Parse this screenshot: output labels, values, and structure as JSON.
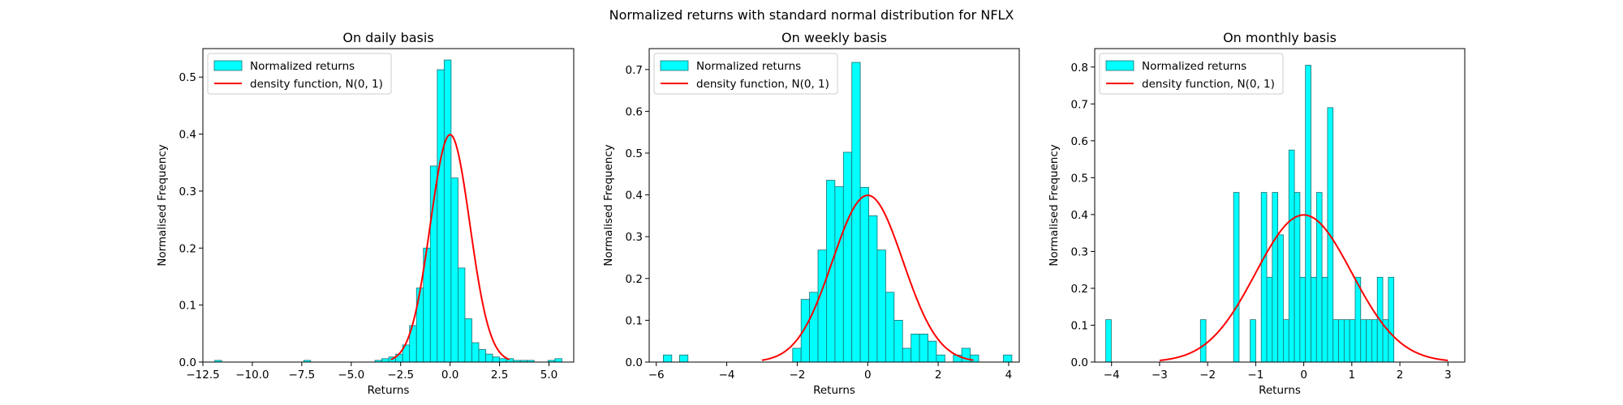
{
  "figure": {
    "suptitle": "Normalized returns with standard normal distribution for NFLX"
  },
  "colors": {
    "bar_fill": "#00ffff",
    "bar_edge": "#1f6f6f",
    "curve": "#ff0000",
    "axes": "#000000"
  },
  "chart_data": [
    {
      "type": "bar",
      "title": "On daily basis",
      "xlabel": "Returns",
      "ylabel": "Normalised Frequency",
      "xlim": [
        -12.5,
        6.25
      ],
      "ylim": [
        0,
        0.55
      ],
      "xticks": [
        -12.5,
        -10.0,
        -7.5,
        -5.0,
        -2.5,
        0.0,
        2.5,
        5.0
      ],
      "xtick_labels": [
        "−12.5",
        "−10.0",
        "−7.5",
        "−5.0",
        "−2.5",
        "0.0",
        "2.5",
        "5.0"
      ],
      "yticks": [
        0.0,
        0.1,
        0.2,
        0.3,
        0.4,
        0.5
      ],
      "ytick_labels": [
        "0.0",
        "0.1",
        "0.2",
        "0.3",
        "0.4",
        "0.5"
      ],
      "legend": {
        "location": "upper-left",
        "entries": [
          "Normalized returns",
          "density function, N(0, 1)"
        ]
      },
      "series": [
        {
          "name": "Normalized returns",
          "kind": "histogram",
          "bin_width": 0.35,
          "bin_starts": [
            -11.9,
            -7.4,
            -3.8,
            -3.45,
            -3.1,
            -2.75,
            -2.4,
            -2.05,
            -1.7,
            -1.35,
            -1.0,
            -0.65,
            -0.3,
            0.05,
            0.4,
            0.75,
            1.1,
            1.45,
            1.8,
            2.15,
            2.5,
            2.85,
            3.2,
            3.55,
            3.9,
            4.95,
            5.3
          ],
          "values": [
            0.003,
            0.003,
            0.003,
            0.006,
            0.009,
            0.014,
            0.03,
            0.064,
            0.13,
            0.2,
            0.344,
            0.513,
            0.53,
            0.323,
            0.165,
            0.076,
            0.034,
            0.022,
            0.014,
            0.009,
            0.006,
            0.006,
            0.003,
            0.003,
            0.003,
            0.003,
            0.006
          ]
        },
        {
          "name": "density function, N(0, 1)",
          "kind": "normal-pdf",
          "mu": 0,
          "sigma": 1,
          "x_range": [
            -3,
            3
          ]
        }
      ]
    },
    {
      "type": "bar",
      "title": "On weekly basis",
      "xlabel": "Returns",
      "ylabel": "Normalised Frequency",
      "xlim": [
        -6.2,
        4.3
      ],
      "ylim": [
        0,
        0.75
      ],
      "xticks": [
        -6,
        -4,
        -2,
        0,
        2,
        4
      ],
      "xtick_labels": [
        "−6",
        "−4",
        "−2",
        "0",
        "2",
        "4"
      ],
      "yticks": [
        0.0,
        0.1,
        0.2,
        0.3,
        0.4,
        0.5,
        0.6,
        0.7
      ],
      "ytick_labels": [
        "0.0",
        "0.1",
        "0.2",
        "0.3",
        "0.4",
        "0.5",
        "0.6",
        "0.7"
      ],
      "legend": {
        "location": "upper-left",
        "entries": [
          "Normalized returns",
          "density function, N(0, 1)"
        ]
      },
      "series": [
        {
          "name": "Normalized returns",
          "kind": "histogram",
          "bin_width": 0.24,
          "bin_starts": [
            -5.8,
            -5.34,
            -2.13,
            -1.89,
            -1.65,
            -1.41,
            -1.17,
            -0.93,
            -0.69,
            -0.45,
            -0.21,
            0.03,
            0.27,
            0.51,
            0.75,
            0.99,
            1.23,
            1.47,
            1.71,
            1.95,
            2.43,
            2.67,
            2.91,
            3.85
          ],
          "values": [
            0.017,
            0.017,
            0.033,
            0.15,
            0.167,
            0.268,
            0.435,
            0.42,
            0.502,
            0.717,
            0.418,
            0.35,
            0.268,
            0.167,
            0.1,
            0.033,
            0.067,
            0.067,
            0.05,
            0.017,
            0.017,
            0.033,
            0.017,
            0.017
          ]
        },
        {
          "name": "density function, N(0, 1)",
          "kind": "normal-pdf",
          "mu": 0,
          "sigma": 1,
          "x_range": [
            -3,
            3
          ]
        }
      ]
    },
    {
      "type": "bar",
      "title": "On monthly basis",
      "xlabel": "Returns",
      "ylabel": "Normalised Frequency",
      "xlim": [
        -4.35,
        3.35
      ],
      "ylim": [
        0,
        0.85
      ],
      "xticks": [
        -4,
        -3,
        -2,
        -1,
        0,
        1,
        2,
        3
      ],
      "xtick_labels": [
        "−4",
        "−3",
        "−2",
        "−1",
        "0",
        "1",
        "2",
        "3"
      ],
      "yticks": [
        0.0,
        0.1,
        0.2,
        0.3,
        0.4,
        0.5,
        0.6,
        0.7,
        0.8
      ],
      "ytick_labels": [
        "0.0",
        "0.1",
        "0.2",
        "0.3",
        "0.4",
        "0.5",
        "0.6",
        "0.7",
        "0.8"
      ],
      "legend": {
        "location": "upper-left",
        "entries": [
          "Normalized returns",
          "density function, N(0, 1)"
        ]
      },
      "series": [
        {
          "name": "Normalized returns",
          "kind": "histogram",
          "bin_width": 0.115,
          "bin_starts": [
            -4.12,
            -2.15,
            -1.46,
            -1.115,
            -0.885,
            -0.77,
            -0.655,
            -0.54,
            -0.425,
            -0.31,
            -0.195,
            -0.08,
            0.035,
            0.15,
            0.265,
            0.38,
            0.495,
            0.61,
            0.725,
            0.84,
            0.955,
            1.07,
            1.185,
            1.3,
            1.415,
            1.53,
            1.645,
            1.76
          ],
          "values": [
            0.115,
            0.115,
            0.46,
            0.115,
            0.46,
            0.23,
            0.46,
            0.345,
            0.115,
            0.575,
            0.46,
            0.23,
            0.805,
            0.23,
            0.46,
            0.23,
            0.69,
            0.115,
            0.115,
            0.115,
            0.115,
            0.23,
            0.115,
            0.115,
            0.115,
            0.23,
            0.115,
            0.23
          ]
        },
        {
          "name": "density function, N(0, 1)",
          "kind": "normal-pdf",
          "mu": 0,
          "sigma": 1,
          "x_range": [
            -3,
            3
          ]
        }
      ]
    }
  ]
}
